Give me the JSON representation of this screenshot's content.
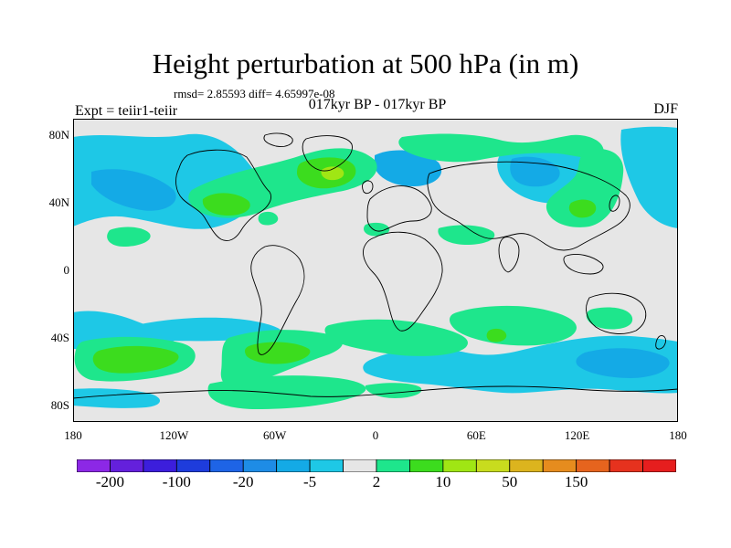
{
  "figure": {
    "title": "Height perturbation at 500 hPa (in m)",
    "stats": "rmsd= 2.85593 diff= 4.65997e-08",
    "periods": "017kyr BP - 017kyr BP",
    "experiment": "Expt = teiir1-teiir",
    "season": "DJF"
  },
  "axes": {
    "y_ticks": [
      {
        "label": "80N",
        "value": 80
      },
      {
        "label": "40N",
        "value": 40
      },
      {
        "label": "0",
        "value": 0
      },
      {
        "label": "40S",
        "value": -40
      },
      {
        "label": "80S",
        "value": -80
      }
    ],
    "x_ticks": [
      {
        "label": "180",
        "value": -180
      },
      {
        "label": "120W",
        "value": -120
      },
      {
        "label": "60W",
        "value": -60
      },
      {
        "label": "0",
        "value": 0
      },
      {
        "label": "60E",
        "value": 60
      },
      {
        "label": "120E",
        "value": 120
      },
      {
        "label": "180",
        "value": 180
      }
    ],
    "lon_range": [
      -180,
      180
    ],
    "lat_range": [
      -90,
      90
    ]
  },
  "colorbar": {
    "colors": [
      "#8c28e6",
      "#6420dc",
      "#3c1edc",
      "#1e3cdc",
      "#1e64e6",
      "#1e8ce6",
      "#14aae6",
      "#1ec8e6",
      "#e6e6e6",
      "#1ee68c",
      "#3cdc1e",
      "#a0e614",
      "#c8dc1e",
      "#dcb41e",
      "#e68c1e",
      "#e6641e",
      "#e6321e",
      "#e61e1e"
    ],
    "labels": [
      {
        "text": "-200",
        "boundary": 1
      },
      {
        "text": "-100",
        "boundary": 3
      },
      {
        "text": "-20",
        "boundary": 5
      },
      {
        "text": "-5",
        "boundary": 7
      },
      {
        "text": "2",
        "boundary": 9
      },
      {
        "text": "10",
        "boundary": 11
      },
      {
        "text": "50",
        "boundary": 13
      },
      {
        "text": "150",
        "boundary": 15
      }
    ]
  },
  "colors": {
    "neutral": "#e6e6e6",
    "light_blue": "#1ec8e6",
    "blue": "#14aae6",
    "green": "#1ee68c",
    "dark_green": "#3cdc1e",
    "yellow_green": "#a0e614"
  }
}
